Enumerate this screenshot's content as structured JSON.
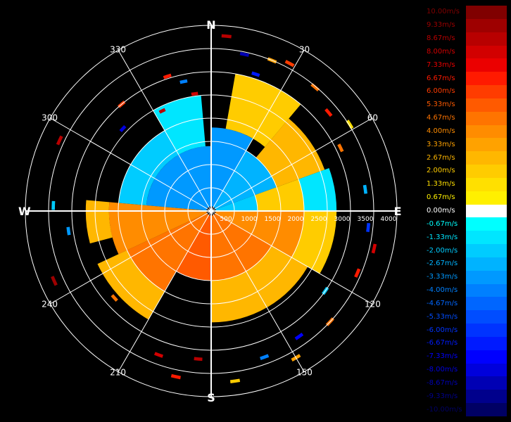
{
  "chart_data": {
    "type": "heatmap",
    "projection": "polar",
    "quantity": "radial velocity",
    "units": "m/s",
    "compass": [
      "N",
      "E",
      "S",
      "W"
    ],
    "azimuth_ticks": [
      "30",
      "60",
      "120",
      "150",
      "210",
      "240",
      "300",
      "330"
    ],
    "azimuth_tick_values": [
      30,
      60,
      120,
      150,
      210,
      240,
      300,
      330
    ],
    "range_ticks": [
      "500",
      "1000",
      "1500",
      "2000",
      "2500",
      "3000",
      "3500",
      "4000"
    ],
    "range_tick_values": [
      500,
      1000,
      1500,
      2000,
      2500,
      3000,
      3500,
      4000
    ],
    "range_max": 4000,
    "grid": true,
    "legend_position": "right",
    "colorscale": {
      "labels": [
        "10.00m/s",
        "9.33m/s",
        "8.67m/s",
        "8.00m/s",
        "7.33m/s",
        "6.67m/s",
        "6.00m/s",
        "5.33m/s",
        "4.67m/s",
        "4.00m/s",
        "3.33m/s",
        "2.67m/s",
        "2.00m/s",
        "1.33m/s",
        "0.67m/s",
        "0.00m/s",
        "-0.67m/s",
        "-1.33m/s",
        "-2.00m/s",
        "-2.67m/s",
        "-3.33m/s",
        "-4.00m/s",
        "-4.67m/s",
        "-5.33m/s",
        "-6.00m/s",
        "-6.67m/s",
        "-7.33m/s",
        "-8.00m/s",
        "-8.67m/s",
        "-9.33m/s",
        "-10.00m/s"
      ],
      "colors": [
        "#800000",
        "#9e0000",
        "#b80000",
        "#d20000",
        "#eb0000",
        "#ff1a00",
        "#ff3c00",
        "#ff5a00",
        "#ff7400",
        "#ff8c00",
        "#ffa200",
        "#ffb700",
        "#ffcc00",
        "#ffe000",
        "#fff000",
        "#ffffff",
        "#00ffff",
        "#00e6ff",
        "#00ccff",
        "#00b3ff",
        "#0099ff",
        "#0080ff",
        "#0066ff",
        "#004dff",
        "#0033ff",
        "#001aff",
        "#0000ff",
        "#0000dc",
        "#0000b4",
        "#00008c",
        "#000064"
      ]
    },
    "regions": [
      {
        "az_from": 0,
        "az_to": 30,
        "r_from": 100,
        "r_to": 1800,
        "value": -3.0
      },
      {
        "az_from": 30,
        "az_to": 70,
        "r_from": 100,
        "r_to": 1500,
        "value": -2.5
      },
      {
        "az_from": 70,
        "az_to": 90,
        "r_from": 100,
        "r_to": 1000,
        "value": -2.0
      },
      {
        "az_from": 275,
        "az_to": 360,
        "r_from": 100,
        "r_to": 1400,
        "value": -3.5
      },
      {
        "az_from": 275,
        "az_to": 330,
        "r_from": 1400,
        "r_to": 2000,
        "value": -2.0
      },
      {
        "az_from": 330,
        "az_to": 355,
        "r_from": 1400,
        "r_to": 2500,
        "value": -1.5
      },
      {
        "az_from": 10,
        "az_to": 40,
        "r_from": 1800,
        "r_to": 3000,
        "value": 2.0
      },
      {
        "az_from": 40,
        "az_to": 70,
        "r_from": 1500,
        "r_to": 2600,
        "value": 2.5
      },
      {
        "az_from": 70,
        "az_to": 90,
        "r_from": 1000,
        "r_to": 2000,
        "value": 2.0
      },
      {
        "az_from": 70,
        "az_to": 90,
        "r_from": 2000,
        "r_to": 2700,
        "value": -1.5
      },
      {
        "az_from": 90,
        "az_to": 120,
        "r_from": 100,
        "r_to": 2000,
        "value": 4.0
      },
      {
        "az_from": 90,
        "az_to": 120,
        "r_from": 2000,
        "r_to": 2700,
        "value": 2.0
      },
      {
        "az_from": 120,
        "az_to": 180,
        "r_from": 100,
        "r_to": 1500,
        "value": 5.0
      },
      {
        "az_from": 120,
        "az_to": 180,
        "r_from": 1500,
        "r_to": 2400,
        "value": 3.0
      },
      {
        "az_from": 180,
        "az_to": 210,
        "r_from": 100,
        "r_to": 1500,
        "value": 5.5
      },
      {
        "az_from": 210,
        "az_to": 245,
        "r_from": 100,
        "r_to": 2000,
        "value": 4.5
      },
      {
        "az_from": 210,
        "az_to": 245,
        "r_from": 2000,
        "r_to": 2700,
        "value": 2.5
      },
      {
        "az_from": 245,
        "az_to": 275,
        "r_from": 100,
        "r_to": 2200,
        "value": 4.0
      },
      {
        "az_from": 255,
        "az_to": 275,
        "r_from": 2200,
        "r_to": 2700,
        "value": 3.0
      }
    ],
    "scattered_bins": [
      {
        "az": 5,
        "r": 3780,
        "value": 8.5
      },
      {
        "az": 12,
        "r": 3450,
        "value": -8.5
      },
      {
        "az": 22,
        "r": 3500,
        "value": 3.5
      },
      {
        "az": 28,
        "r": 3600,
        "value": 6.0
      },
      {
        "az": 40,
        "r": 3480,
        "value": 4.5
      },
      {
        "az": 50,
        "r": 3300,
        "value": 7.0
      },
      {
        "az": 58,
        "r": 3520,
        "value": 1.5
      },
      {
        "az": 64,
        "r": 3100,
        "value": 5.0
      },
      {
        "az": 82,
        "r": 3350,
        "value": -2.5
      },
      {
        "az": 96,
        "r": 3400,
        "value": -6.0
      },
      {
        "az": 103,
        "r": 3600,
        "value": 8.0
      },
      {
        "az": 113,
        "r": 3420,
        "value": 6.5
      },
      {
        "az": 125,
        "r": 3000,
        "value": -2.0
      },
      {
        "az": 133,
        "r": 3500,
        "value": 4.5
      },
      {
        "az": 145,
        "r": 3300,
        "value": -7.5
      },
      {
        "az": 150,
        "r": 3650,
        "value": 3.5
      },
      {
        "az": 160,
        "r": 3350,
        "value": -4.0
      },
      {
        "az": 172,
        "r": 3700,
        "value": 2.0
      },
      {
        "az": 185,
        "r": 3200,
        "value": 9.0
      },
      {
        "az": 192,
        "r": 3650,
        "value": 7.0
      },
      {
        "az": 200,
        "r": 3300,
        "value": 8.0
      },
      {
        "az": 228,
        "r": 2800,
        "value": 5.0
      },
      {
        "az": 246,
        "r": 3700,
        "value": 9.5
      },
      {
        "az": 262,
        "r": 3100,
        "value": -3.0
      },
      {
        "az": 272,
        "r": 3400,
        "value": -2.0
      },
      {
        "az": 295,
        "r": 3600,
        "value": 8.5
      },
      {
        "az": 313,
        "r": 2600,
        "value": -8.0
      },
      {
        "az": 320,
        "r": 3000,
        "value": 6.0
      },
      {
        "az": 334,
        "r": 2400,
        "value": 9.0
      },
      {
        "az": 342,
        "r": 3050,
        "value": 7.0
      },
      {
        "az": 348,
        "r": 2850,
        "value": -4.0
      },
      {
        "az": 352,
        "r": 2550,
        "value": 8.0
      },
      {
        "az": 18,
        "r": 3100,
        "value": -6.5
      }
    ]
  }
}
